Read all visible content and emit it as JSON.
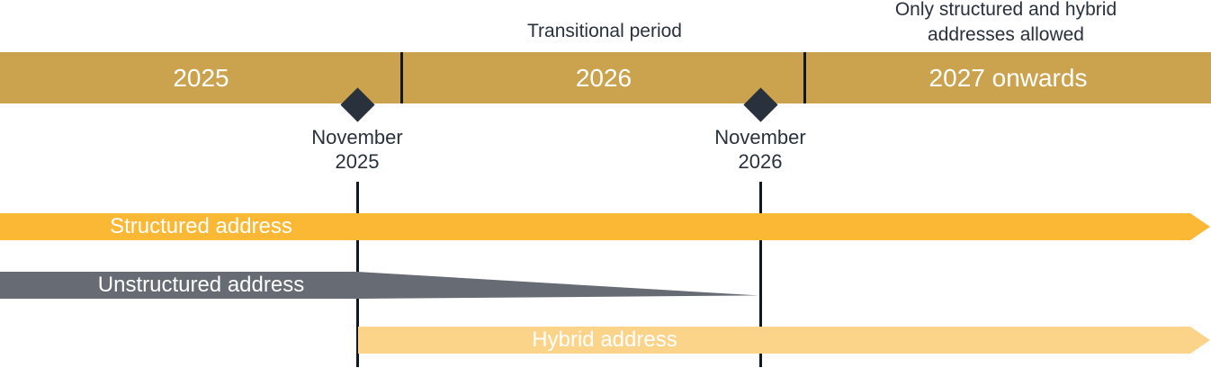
{
  "colors": {
    "gold": "#CBA24D",
    "orange": "#FBB835",
    "gray": "#676C74",
    "lightyellow": "#FBD489",
    "dark": "#28313C",
    "line": "#121820",
    "white": "#FFFFFF"
  },
  "annotations": {
    "transitional": "Transitional period",
    "restriction": "Only structured and hybrid\naddresses allowed"
  },
  "timeline": {
    "segments": [
      {
        "label": "2025"
      },
      {
        "label": "2026"
      },
      {
        "label": "2027 onwards"
      }
    ]
  },
  "milestones": [
    {
      "label": "November\n2025"
    },
    {
      "label": "November\n2026"
    }
  ],
  "bars": [
    {
      "label": "Structured address"
    },
    {
      "label": "Unstructured address"
    },
    {
      "label": "Hybrid address"
    }
  ]
}
